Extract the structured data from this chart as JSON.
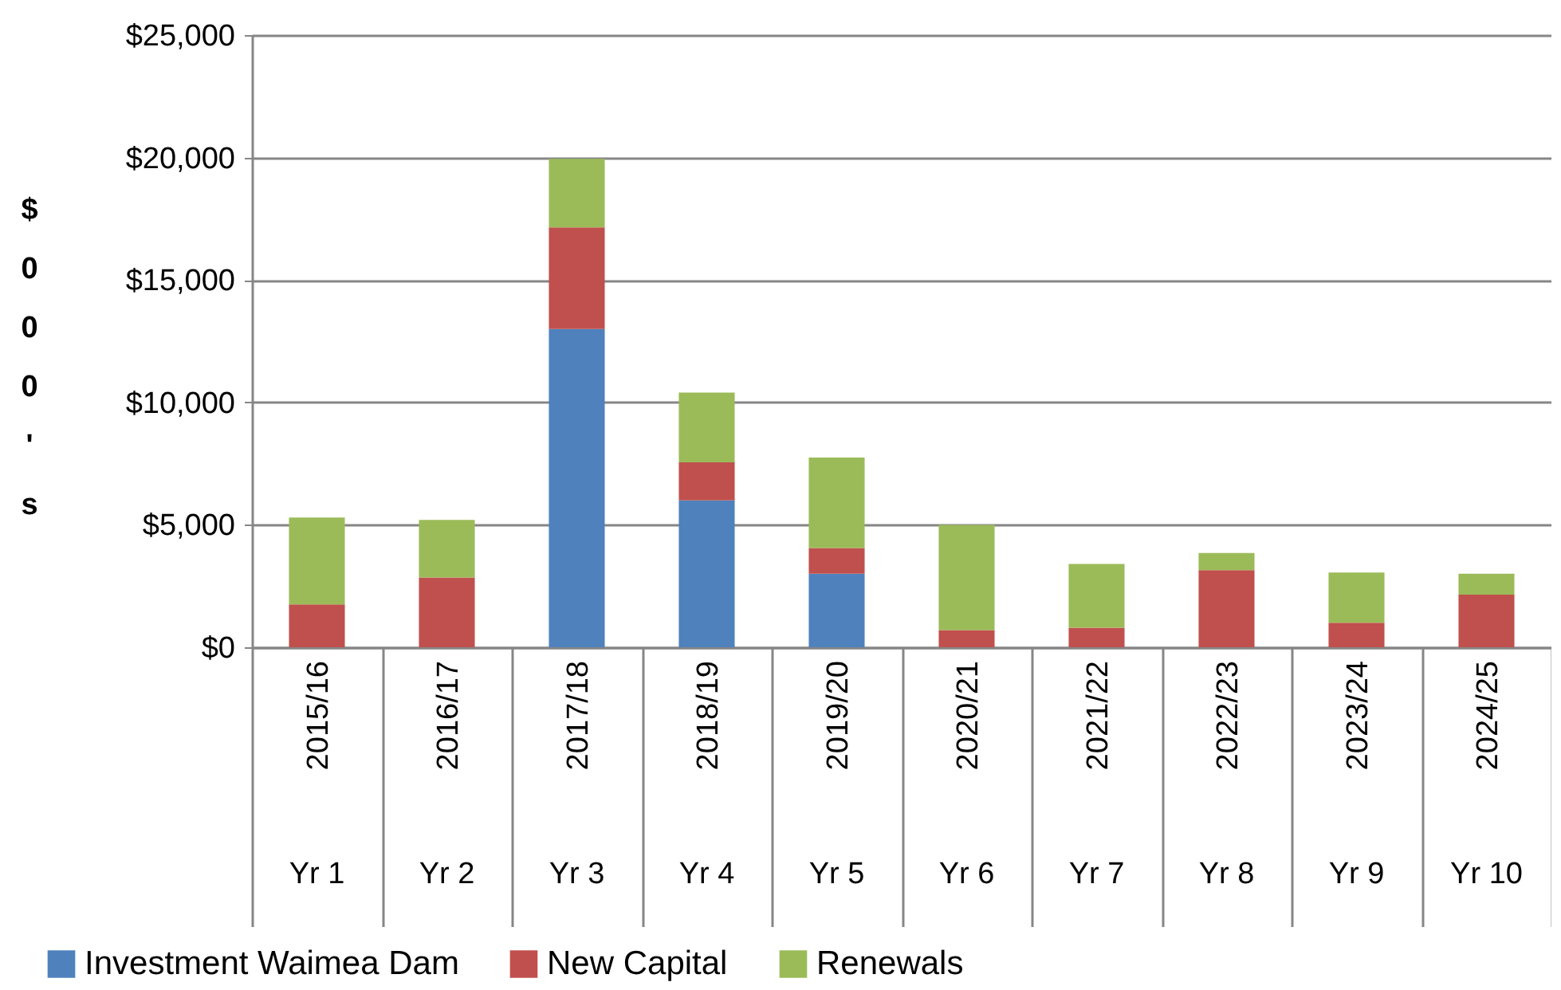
{
  "chart_data": {
    "type": "bar",
    "stacked": true,
    "ylabel": "$000's",
    "categories": [
      "2015/16",
      "2016/17",
      "2017/18",
      "2018/19",
      "2019/20",
      "2020/21",
      "2021/22",
      "2022/23",
      "2023/24",
      "2024/25"
    ],
    "series": [
      {
        "name": "Investment Waimea Dam",
        "color": "#4f81bd",
        "values": [
          0,
          0,
          13000,
          6000,
          3000,
          0,
          0,
          0,
          0,
          0
        ]
      },
      {
        "name": "New Capital",
        "color": "#c0504d",
        "values": [
          1750,
          2850,
          4150,
          1550,
          1050,
          700,
          800,
          3150,
          1000,
          2150
        ]
      },
      {
        "name": "Renewals",
        "color": "#9bbb59",
        "values": [
          3550,
          2350,
          2800,
          2850,
          3700,
          4300,
          2600,
          700,
          2050,
          850
        ]
      }
    ],
    "ylim": [
      0,
      25000
    ],
    "yticks": [
      {
        "value": 0,
        "label": "$0"
      },
      {
        "value": 5000,
        "label": "$5,000"
      },
      {
        "value": 10000,
        "label": "$10,000"
      },
      {
        "value": 15000,
        "label": "$15,000"
      },
      {
        "value": 20000,
        "label": "$20,000"
      },
      {
        "value": 25000,
        "label": "$25,000"
      }
    ],
    "grid": "y",
    "legend": "bottom",
    "annotations": [
      "Yr 1",
      "Yr 2",
      "Yr 3",
      "Yr 4",
      "Yr 5",
      "Yr 6",
      "Yr 7",
      "Yr 8",
      "Yr 9",
      "Yr 10"
    ]
  }
}
